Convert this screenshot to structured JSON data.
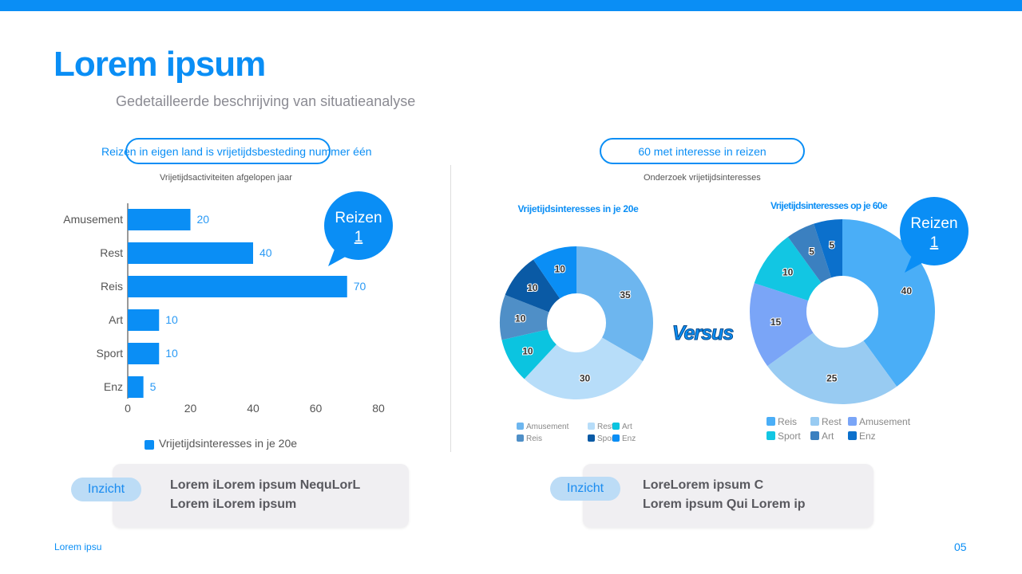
{
  "header": {
    "title": "Lorem ipsum",
    "subtitle": "Gedetailleerde beschrijving van situatieanalyse"
  },
  "left": {
    "headline": "Reizen in eigen land is vrijetijdsbesteding nummer één",
    "caption": "Vrijetijdsactiviteiten afgelopen jaar",
    "callout": {
      "label": "Reizen",
      "rank": "1"
    },
    "insight": {
      "badge": "Inzicht",
      "line1": "Lorem iLorem ipsum NequLorL",
      "line2": "Lorem iLorem ipsum"
    }
  },
  "right": {
    "headline": "60 met interesse in reizen",
    "caption": "Onderzoek vrijetijdsinteresses",
    "versus": "Versus",
    "callout": {
      "label": "Reizen",
      "rank": "1"
    },
    "insight": {
      "badge": "Inzicht",
      "line1": "LoreLorem ipsum C",
      "line2": "Lorem ipsum Qui Lorem ip"
    }
  },
  "footer": {
    "text": "Lorem ipsu",
    "page": "05"
  },
  "chart_data": [
    {
      "type": "bar",
      "orientation": "horizontal",
      "categories": [
        "Amusement",
        "Rest",
        "Reis",
        "Art",
        "Sport",
        "Enz"
      ],
      "values": [
        20,
        40,
        70,
        10,
        10,
        5
      ],
      "xlim": [
        0,
        80
      ],
      "xticks": [
        "0",
        "20",
        "40",
        "60",
        "80"
      ],
      "legend": "Vrijetijdsinteresses in je 20e",
      "legend_position": "bottom",
      "color": "#0a8ef5",
      "grid": false
    },
    {
      "type": "pie",
      "donut": true,
      "title": "Vrijetijdsinteresses in je 20e",
      "labels": [
        "Amusement",
        "Rest",
        "Art",
        "Reis",
        "Sport",
        "Enz"
      ],
      "values": [
        35,
        30,
        10,
        10,
        10,
        10
      ],
      "colors": [
        "#6db6ef",
        "#b7ddf9",
        "#0bc4e0",
        "#4f8fc7",
        "#0a5aa5",
        "#0a8ef5"
      ],
      "legend_position": "bottom"
    },
    {
      "type": "pie",
      "donut": true,
      "title": "Vrijetijdsinteresses op je 60e",
      "labels": [
        "Reis",
        "Rest",
        "Amusement",
        "Sport",
        "Art",
        "Enz"
      ],
      "values": [
        40,
        25,
        15,
        10,
        5,
        5
      ],
      "colors": [
        "#4aaef7",
        "#98cbf2",
        "#7aa5f7",
        "#12c6e3",
        "#3b80c0",
        "#0b70cc"
      ],
      "legend_position": "bottom"
    }
  ]
}
